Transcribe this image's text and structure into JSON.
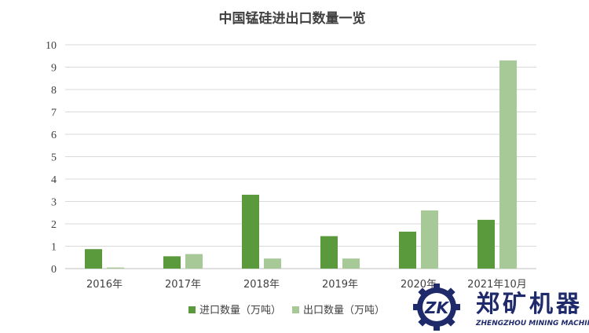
{
  "chart_data": {
    "type": "bar",
    "title": "中国锰硅进出口数量一览",
    "categories": [
      "2016年",
      "2017年",
      "2018年",
      "2019年",
      "2020年",
      "2021年10月"
    ],
    "series": [
      {
        "name": "进口数量（万吨）",
        "color": "#5b9a3c",
        "values": [
          0.87,
          0.55,
          3.3,
          1.45,
          1.65,
          2.18
        ]
      },
      {
        "name": "出口数量（万吨）",
        "color": "#a6c997",
        "values": [
          0.05,
          0.65,
          0.45,
          0.45,
          2.6,
          9.3
        ]
      }
    ],
    "ylim": [
      0,
      10
    ],
    "yticks": [
      0,
      1,
      2,
      3,
      4,
      5,
      6,
      7,
      8,
      9,
      10
    ],
    "grid": true,
    "legend_position": "bottom"
  },
  "watermark": {
    "logo_mark": "ZK",
    "name": "郑矿机器",
    "subtitle": "ZHENGZHOU MINING MACHINERY",
    "color": "#1f2a6b"
  }
}
